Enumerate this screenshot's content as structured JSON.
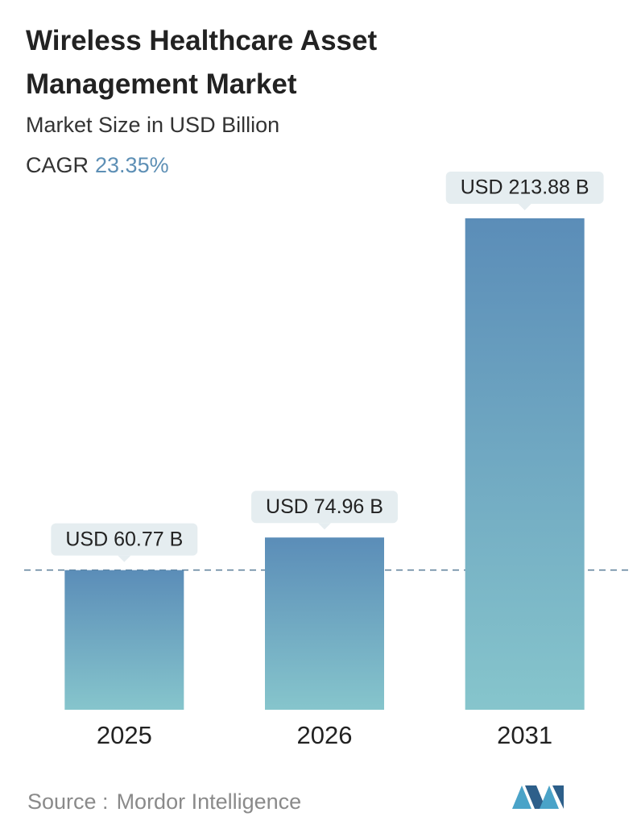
{
  "chart_data": {
    "type": "bar",
    "title": "Wireless Healthcare Asset Management Market",
    "subtitle": "Market Size in USD Billion",
    "cagr_label": "CAGR",
    "cagr": "23.35%",
    "categories": [
      "2025",
      "2026",
      "2031"
    ],
    "values": [
      60.77,
      74.96,
      213.88
    ],
    "value_labels": [
      "USD 60.77 B",
      "USD 74.96 B",
      "USD 213.88 B"
    ],
    "color_top": "#5b8db8",
    "color_bottom": "#86c5cc",
    "source_label": "Source :",
    "source": "Mordor Intelligence"
  }
}
